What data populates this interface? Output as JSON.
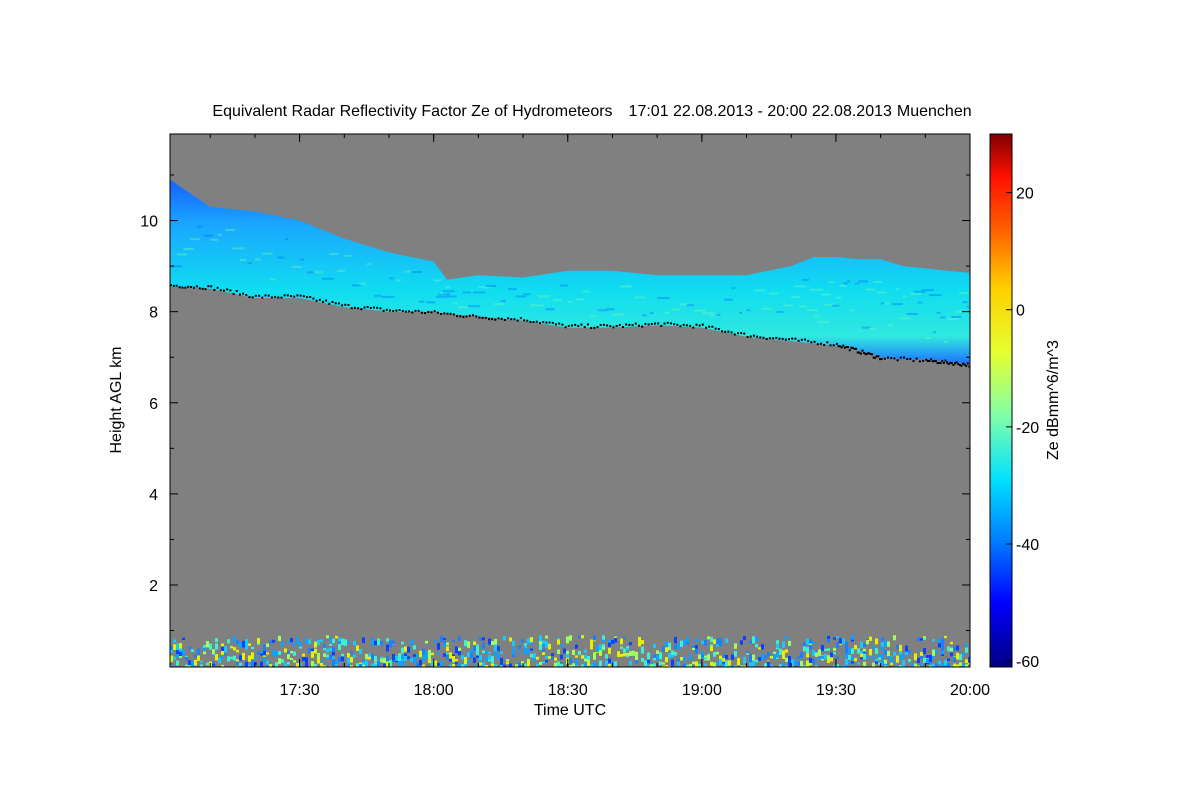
{
  "chart_data": {
    "type": "heatmap",
    "title": "Equivalent Radar Reflectivity Factor Ze of Hydrometeors",
    "period": "17:01 22.08.2013 - 20:00 22.08.2013",
    "site": "Muenchen",
    "xlabel": "Time UTC",
    "ylabel": "Height AGL km",
    "x_range_minutes_utc": [
      1021,
      1200
    ],
    "y_range_km": [
      0.2,
      11.9
    ],
    "x_ticks": [
      {
        "minute": 1050,
        "label": "17:30"
      },
      {
        "minute": 1080,
        "label": "18:00"
      },
      {
        "minute": 1110,
        "label": "18:30"
      },
      {
        "minute": 1140,
        "label": "19:00"
      },
      {
        "minute": 1170,
        "label": "19:30"
      },
      {
        "minute": 1200,
        "label": "20:00"
      }
    ],
    "y_ticks": [
      {
        "value": 2,
        "label": "2"
      },
      {
        "value": 4,
        "label": "4"
      },
      {
        "value": 6,
        "label": "6"
      },
      {
        "value": 8,
        "label": "8"
      },
      {
        "value": 10,
        "label": "10"
      }
    ],
    "colorbar": {
      "label": "Ze dBmm^6/m^3",
      "range": [
        -61,
        30
      ],
      "ticks": [
        {
          "value": -60,
          "label": "-60"
        },
        {
          "value": -40,
          "label": "-40"
        },
        {
          "value": -20,
          "label": "-20"
        },
        {
          "value": 0,
          "label": "0"
        },
        {
          "value": 20,
          "label": "20"
        }
      ]
    },
    "background_color": "#808080",
    "cloud_layer": {
      "description": "cirrus layer, Ze about -25 to -40 dBZ",
      "x": [
        1021,
        1030,
        1040,
        1050,
        1060,
        1070,
        1080,
        1083,
        1090,
        1100,
        1110,
        1120,
        1130,
        1140,
        1150,
        1160,
        1165,
        1170,
        1175,
        1180,
        1185,
        1190,
        1195,
        1200
      ],
      "top_km": [
        10.9,
        10.3,
        10.2,
        10.0,
        9.6,
        9.3,
        9.1,
        8.7,
        8.8,
        8.75,
        8.9,
        8.9,
        8.8,
        8.8,
        8.8,
        9.0,
        9.2,
        9.2,
        9.15,
        9.15,
        9.0,
        8.95,
        8.9,
        8.85
      ],
      "base_km": [
        8.55,
        8.5,
        8.3,
        8.3,
        8.1,
        8.0,
        8.0,
        7.95,
        7.9,
        7.8,
        7.65,
        7.65,
        7.7,
        7.65,
        7.45,
        7.35,
        7.3,
        7.25,
        7.15,
        7.0,
        6.95,
        6.95,
        6.9,
        6.85
      ]
    },
    "cloud_base_marker": {
      "description": "black dots marking detected cloud base",
      "x": [
        1021,
        1030,
        1040,
        1050,
        1060,
        1070,
        1080,
        1090,
        1100,
        1110,
        1120,
        1130,
        1140,
        1150,
        1160,
        1170,
        1175,
        1180,
        1190,
        1195,
        1200
      ],
      "height_km": [
        8.6,
        8.55,
        8.35,
        8.35,
        8.15,
        8.05,
        8.0,
        7.9,
        7.85,
        7.7,
        7.7,
        7.75,
        7.7,
        7.5,
        7.4,
        7.3,
        7.15,
        7.0,
        6.95,
        6.9,
        6.85
      ]
    },
    "near_surface_echoes": {
      "description": "low-level clutter/insects, Ze about -40 to -10 dBZ",
      "height_km": [
        0.2,
        0.9
      ]
    }
  }
}
